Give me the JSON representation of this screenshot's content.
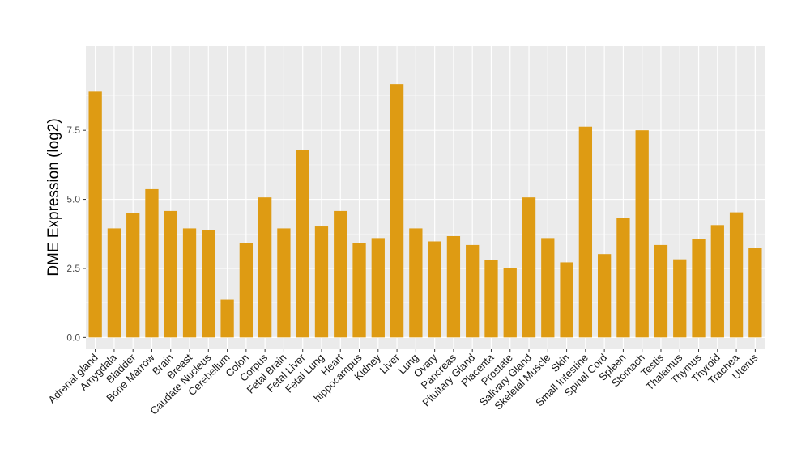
{
  "colors": {
    "panel": "#ebebeb",
    "grid_major": "#ffffff",
    "grid_minor": "#f5f5f5",
    "bar": "#de9b13",
    "tick": "#333333"
  },
  "chart_data": {
    "type": "bar",
    "title": "",
    "xlabel": "",
    "ylabel": "DME Expression (log2)",
    "ylim": [
      -0.4,
      10.55
    ],
    "yticks": [
      0.0,
      2.5,
      5.0,
      7.5
    ],
    "ytick_labels": [
      "0.0",
      "2.5",
      "5.0",
      "7.5"
    ],
    "grid": true,
    "categories": [
      "Adrenal gland",
      "Amygdala",
      "Bladder",
      "Bone Marrow",
      "Brain",
      "Breast",
      "Caudate Nucleus",
      "Cerebellum",
      "Colon",
      "Corpus",
      "Fetal Brain",
      "Fetal Liver",
      "Fetal Lung",
      "Heart",
      "hippocampus",
      "Kidney",
      "Liver",
      "Lung",
      "Ovary",
      "Pancreas",
      "Pituitary Gland",
      "Placenta",
      "Prostate",
      "Salivary Gland",
      "Skeletal Muscle",
      "Skin",
      "Small Intestine",
      "Spinal Cord",
      "Spleen",
      "Stomach",
      "Testis",
      "Thalamus",
      "Thymus",
      "Thyroid",
      "Trachea",
      "Uterus"
    ],
    "values": [
      8.9,
      3.95,
      4.5,
      5.37,
      4.58,
      3.95,
      3.9,
      1.37,
      3.42,
      5.07,
      3.95,
      6.8,
      4.02,
      4.58,
      3.42,
      3.6,
      9.17,
      3.95,
      3.48,
      3.67,
      3.35,
      2.82,
      2.5,
      5.07,
      3.6,
      2.72,
      7.63,
      3.02,
      4.32,
      7.5,
      3.35,
      2.83,
      3.57,
      4.07,
      4.53,
      3.23
    ]
  }
}
